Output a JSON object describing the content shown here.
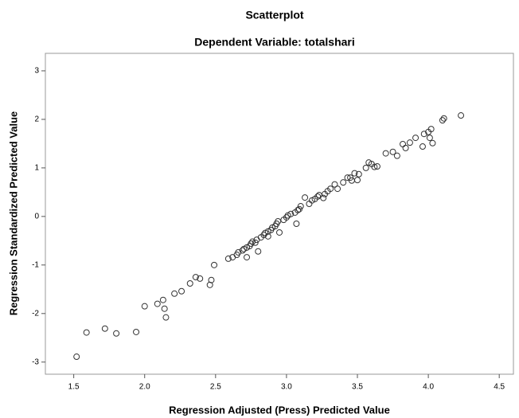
{
  "chart_data": {
    "type": "scatter",
    "title": "Scatterplot",
    "subtitle": "Dependent Variable: totalshari",
    "x_label": "Regression Adjusted (Press) Predicted Value",
    "y_label": "Regression Standardized Predicted Value",
    "color": "#333333",
    "x": [
      1.52,
      1.59,
      1.72,
      1.8,
      1.94,
      2.0,
      2.09,
      2.13,
      2.14,
      2.15,
      2.21,
      2.26,
      2.32,
      2.36,
      2.39,
      2.46,
      2.47,
      2.49,
      2.59,
      2.62,
      2.65,
      2.66,
      2.69,
      2.7,
      2.72,
      2.74,
      2.75,
      2.76,
      2.78,
      2.72,
      2.8,
      2.79,
      2.82,
      2.84,
      2.85,
      2.87,
      2.89,
      2.9,
      2.92,
      2.93,
      2.94,
      2.95,
      2.87,
      2.98,
      3.0,
      3.01,
      3.03,
      3.06,
      3.08,
      3.09,
      3.1,
      3.07,
      3.13,
      3.16,
      3.18,
      3.2,
      3.22,
      3.23,
      3.26,
      3.27,
      3.29,
      3.31,
      3.34,
      3.36,
      3.4,
      3.43,
      3.45,
      3.46,
      3.48,
      3.5,
      3.51,
      3.56,
      3.58,
      3.6,
      3.62,
      3.64,
      3.7,
      3.75,
      3.78,
      3.82,
      3.84,
      3.87,
      3.91,
      3.96,
      3.97,
      4.0,
      4.01,
      4.02,
      4.03,
      4.1,
      4.11,
      4.23
    ],
    "values": [
      -2.89,
      -2.39,
      -2.31,
      -2.41,
      -2.38,
      -1.85,
      -1.8,
      -1.72,
      -1.9,
      -2.08,
      -1.59,
      -1.54,
      -1.38,
      -1.25,
      -1.28,
      -1.41,
      -1.31,
      -1.0,
      -0.87,
      -0.84,
      -0.79,
      -0.74,
      -0.7,
      -0.67,
      -0.64,
      -0.61,
      -0.56,
      -0.52,
      -0.54,
      -0.84,
      -0.72,
      -0.48,
      -0.43,
      -0.38,
      -0.34,
      -0.31,
      -0.28,
      -0.23,
      -0.2,
      -0.15,
      -0.1,
      -0.33,
      -0.41,
      -0.07,
      -0.02,
      0.02,
      0.05,
      0.08,
      0.13,
      0.15,
      0.21,
      -0.15,
      0.39,
      0.26,
      0.33,
      0.36,
      0.41,
      0.44,
      0.38,
      0.46,
      0.52,
      0.57,
      0.66,
      0.57,
      0.7,
      0.8,
      0.8,
      0.74,
      0.89,
      0.75,
      0.87,
      1.0,
      1.11,
      1.08,
      1.02,
      1.03,
      1.3,
      1.33,
      1.25,
      1.49,
      1.41,
      1.52,
      1.62,
      1.44,
      1.7,
      1.74,
      1.62,
      1.8,
      1.51,
      1.98,
      2.02,
      2.08
    ],
    "xlim": [
      1.3,
      4.6
    ],
    "ylim": [
      -3.25,
      3.36
    ],
    "xticks": [
      1.5,
      {
        "value": 2,
        "label": "2.0"
      },
      2.5,
      {
        "value": 3,
        "label": "3.0"
      },
      3.5,
      {
        "value": 4,
        "label": "4.0"
      },
      4.5
    ],
    "yticks": [
      -3,
      -2,
      -1,
      0,
      1,
      2,
      3
    ]
  }
}
